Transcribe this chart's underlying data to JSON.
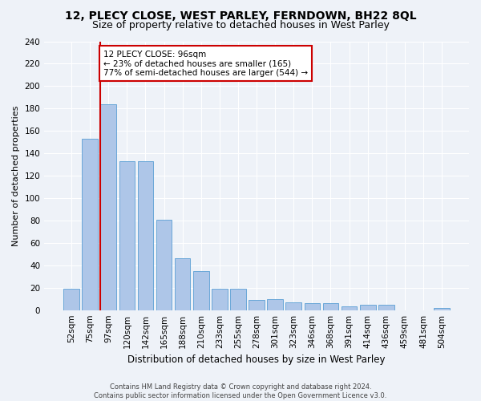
{
  "title1": "12, PLECY CLOSE, WEST PARLEY, FERNDOWN, BH22 8QL",
  "title2": "Size of property relative to detached houses in West Parley",
  "xlabel": "Distribution of detached houses by size in West Parley",
  "ylabel": "Number of detached properties",
  "categories": [
    "52sqm",
    "75sqm",
    "97sqm",
    "120sqm",
    "142sqm",
    "165sqm",
    "188sqm",
    "210sqm",
    "233sqm",
    "255sqm",
    "278sqm",
    "301sqm",
    "323sqm",
    "346sqm",
    "368sqm",
    "391sqm",
    "414sqm",
    "436sqm",
    "459sqm",
    "481sqm",
    "504sqm"
  ],
  "values": [
    19,
    153,
    184,
    133,
    133,
    81,
    46,
    35,
    19,
    19,
    9,
    10,
    7,
    6,
    6,
    3,
    5,
    5,
    0,
    0,
    2
  ],
  "bar_color": "#aec6e8",
  "bar_edge_color": "#5a9fd4",
  "vline_color": "#cc0000",
  "annotation_title": "12 PLECY CLOSE: 96sqm",
  "annotation_line2": "← 23% of detached houses are smaller (165)",
  "annotation_line3": "77% of semi-detached houses are larger (544) →",
  "annotation_box_facecolor": "#ffffff",
  "annotation_box_edgecolor": "#cc0000",
  "ylim": [
    0,
    240
  ],
  "yticks": [
    0,
    20,
    40,
    60,
    80,
    100,
    120,
    140,
    160,
    180,
    200,
    220,
    240
  ],
  "footer1": "Contains HM Land Registry data © Crown copyright and database right 2024.",
  "footer2": "Contains public sector information licensed under the Open Government Licence v3.0.",
  "bg_color": "#eef2f8",
  "grid_color": "#ffffff",
  "title1_fontsize": 10,
  "title2_fontsize": 9,
  "xlabel_fontsize": 8.5,
  "ylabel_fontsize": 8,
  "tick_fontsize": 7.5,
  "annotation_fontsize": 7.5,
  "footer_fontsize": 6.0,
  "vline_bar_index": 2
}
